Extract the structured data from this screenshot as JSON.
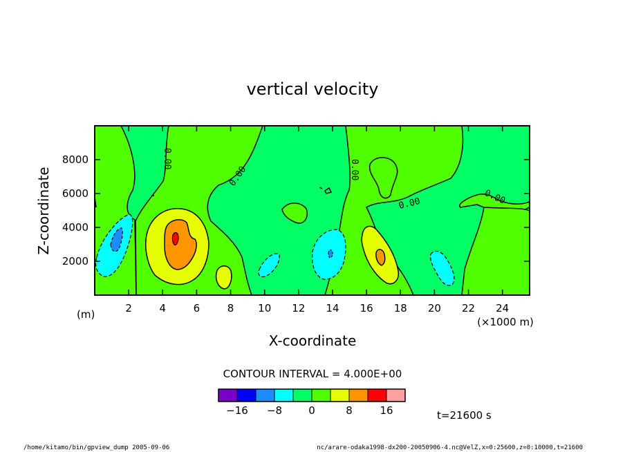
{
  "chart_data": {
    "type": "heatmap",
    "title": "vertical velocity",
    "xlabel": "X-coordinate",
    "ylabel": "Z-coordinate",
    "x_unit": "(×1000 m)",
    "y_unit": "(m)",
    "xlim": [
      0,
      25.6
    ],
    "ylim": [
      0,
      10000
    ],
    "x_ticks": [
      2,
      4,
      6,
      8,
      10,
      12,
      14,
      16,
      18,
      20,
      22,
      24
    ],
    "x_tick_labels": [
      "2",
      "4",
      "6",
      "8",
      "10",
      "12",
      "14",
      "16",
      "18",
      "20",
      "22",
      "24"
    ],
    "y_ticks": [
      2000,
      4000,
      6000,
      8000
    ],
    "y_tick_labels": [
      "2000",
      "4000",
      "6000",
      "8000"
    ],
    "contour_interval_text": "CONTOUR INTERVAL = 4.000E+00",
    "zero_contour_label": "0.00",
    "time_label": "t=21600 s",
    "colorbar": {
      "levels": [
        -20,
        -16,
        -12,
        -8,
        -4,
        0,
        4,
        8,
        12,
        16,
        20
      ],
      "colors": [
        "#7a00c8",
        "#0000ff",
        "#1e8cff",
        "#00ffff",
        "#00ff64",
        "#50ff00",
        "#e6ff00",
        "#ff9600",
        "#ff0000",
        "#ffa0a0"
      ],
      "tick_values": [
        -16,
        -8,
        0,
        8,
        16
      ],
      "tick_labels": [
        "−16",
        "−8",
        "0",
        "8",
        "16"
      ]
    },
    "features": [
      {
        "sign": "negative",
        "x": 1.5,
        "z": 3100,
        "min": -12
      },
      {
        "sign": "positive",
        "x": 4.8,
        "z": 3400,
        "max": 16
      },
      {
        "sign": "positive",
        "x": 7.7,
        "z": 1300,
        "max": 8
      },
      {
        "sign": "negative",
        "x": 10.2,
        "z": 1800,
        "min": -8
      },
      {
        "sign": "negative",
        "x": 14.0,
        "z": 2500,
        "min": -12
      },
      {
        "sign": "positive",
        "x": 17.0,
        "z": 2300,
        "max": 12
      },
      {
        "sign": "negative",
        "x": 20.3,
        "z": 1700,
        "min": -8
      }
    ]
  },
  "footer": {
    "left": "/home/kitamo/bin/gpview_dump  2005-09-06",
    "right": "nc/arare-odaka1998-dx200-20050906-4.nc@VelZ,x=0:25600,z=0:10000,t=21600"
  }
}
